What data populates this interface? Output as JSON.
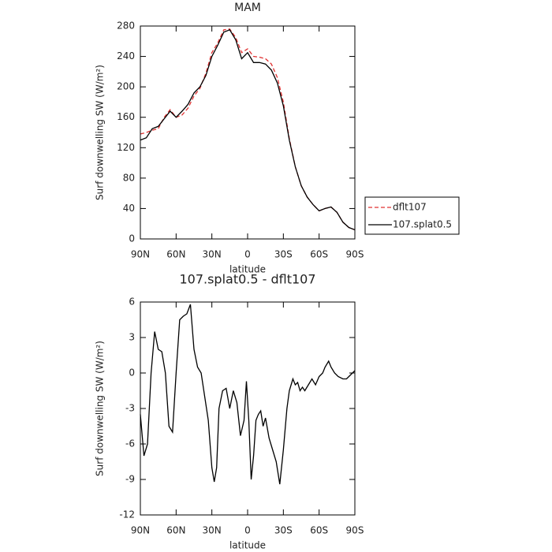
{
  "chart_data": [
    {
      "type": "line",
      "title": "MAM",
      "xlabel": "latitude",
      "ylabel": "Surf downwelling SW (W/m²)",
      "x": [
        90,
        85,
        80,
        75,
        70,
        65,
        60,
        55,
        50,
        45,
        40,
        35,
        30,
        25,
        20,
        15,
        10,
        5,
        0,
        -5,
        -10,
        -15,
        -20,
        -25,
        -30,
        -35,
        -40,
        -45,
        -50,
        -55,
        -60,
        -65,
        -70,
        -75,
        -80,
        -85,
        -90
      ],
      "series": [
        {
          "name": "dflt107",
          "color": "#e03030",
          "dash": true,
          "values": [
            138,
            140,
            143,
            145,
            160,
            170,
            160,
            163,
            172,
            188,
            198,
            218,
            245,
            258,
            275,
            276,
            265,
            245,
            250,
            240,
            239,
            237,
            230,
            212,
            180,
            132,
            95,
            70,
            55,
            45,
            37,
            40,
            42,
            35,
            22,
            15,
            12
          ]
        },
        {
          "name": "107.splat0.5",
          "color": "#000000",
          "dash": false,
          "values": [
            130,
            133,
            145,
            148,
            158,
            168,
            160,
            168,
            177,
            192,
            200,
            215,
            240,
            255,
            272,
            275,
            262,
            237,
            245,
            232,
            232,
            230,
            222,
            205,
            175,
            130,
            95,
            70,
            55,
            45,
            37,
            40,
            42,
            35,
            22,
            15,
            12
          ]
        }
      ],
      "xlim": [
        90,
        -90
      ],
      "xticks": [
        {
          "value": 90,
          "label": "90N"
        },
        {
          "value": 60,
          "label": "60N"
        },
        {
          "value": 30,
          "label": "30N"
        },
        0,
        {
          "value": -30,
          "label": "30S"
        },
        {
          "value": -60,
          "label": "60S"
        },
        {
          "value": -90,
          "label": "90S"
        }
      ],
      "ylim": [
        0,
        280
      ],
      "yticks": [
        0,
        40,
        80,
        120,
        160,
        200,
        240,
        280
      ],
      "legend": "right"
    },
    {
      "type": "line",
      "title": "107.splat0.5 - dflt107",
      "xlabel": "latitude",
      "ylabel": "Surf downwelling SW (W/m²)",
      "x": [
        90,
        87,
        84,
        81,
        78,
        75,
        72,
        69,
        66,
        63,
        60,
        57,
        54,
        51,
        48,
        45,
        42,
        39,
        36,
        33,
        30,
        28,
        26,
        24,
        21,
        18,
        15,
        12,
        9,
        6,
        3,
        1,
        -1,
        -3,
        -5,
        -7,
        -9,
        -11,
        -13,
        -15,
        -18,
        -21,
        -24,
        -27,
        -30,
        -33,
        -35,
        -38,
        -40,
        -42,
        -44,
        -46,
        -48,
        -51,
        -54,
        -57,
        -60,
        -63,
        -65,
        -68,
        -70,
        -73,
        -76,
        -80,
        -83,
        -86,
        -90
      ],
      "color": "#000000",
      "values": [
        -3.5,
        -7,
        -6,
        0,
        3.5,
        2,
        1.8,
        0,
        -4.5,
        -5,
        0,
        4.5,
        4.8,
        5,
        5.8,
        2,
        0.5,
        0,
        -2,
        -4,
        -8,
        -9.2,
        -8,
        -3,
        -1.5,
        -1.3,
        -3,
        -1.5,
        -2.5,
        -5.3,
        -4,
        -0.7,
        -4,
        -9,
        -7,
        -4,
        -3.5,
        -3.2,
        -4.5,
        -3.8,
        -5.5,
        -6.5,
        -7.5,
        -9.4,
        -6.5,
        -3,
        -1.5,
        -0.5,
        -1,
        -0.8,
        -1.5,
        -1.2,
        -1.5,
        -1,
        -0.5,
        -1,
        -0.3,
        0,
        0.5,
        1,
        0.5,
        0,
        -0.3,
        -0.5,
        -0.5,
        -0.2,
        0.2
      ],
      "xlim": [
        90,
        -90
      ],
      "xticks": [
        {
          "value": 90,
          "label": "90N"
        },
        {
          "value": 60,
          "label": "60N"
        },
        {
          "value": 30,
          "label": "30N"
        },
        0,
        {
          "value": -30,
          "label": "30S"
        },
        {
          "value": -60,
          "label": "60S"
        },
        {
          "value": -90,
          "label": "90S"
        }
      ],
      "ylim": [
        -12,
        6
      ],
      "yticks": [
        -12,
        -9,
        -6,
        -3,
        0,
        3,
        6
      ]
    }
  ]
}
